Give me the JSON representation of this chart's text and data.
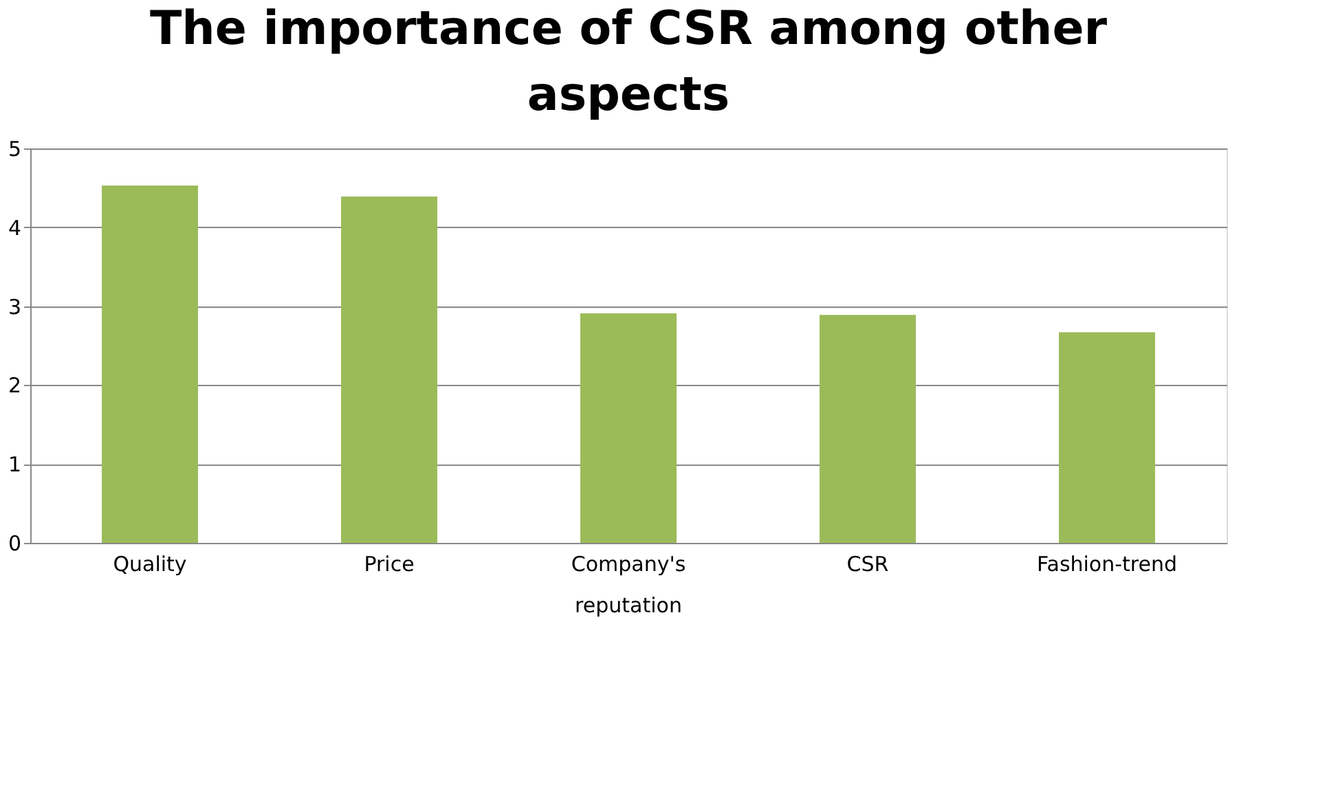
{
  "chart_data": {
    "type": "bar",
    "title": "The importance of CSR among other aspects",
    "categories": [
      "Quality",
      "Price",
      "Company's reputation",
      "CSR",
      "Fashion-trend"
    ],
    "values": [
      4.53,
      4.39,
      2.91,
      2.89,
      2.67
    ],
    "color": "#9bbb59",
    "ylim": [
      0,
      5
    ],
    "yticks": [
      0,
      1,
      2,
      3,
      4,
      5
    ],
    "grid": "y"
  }
}
